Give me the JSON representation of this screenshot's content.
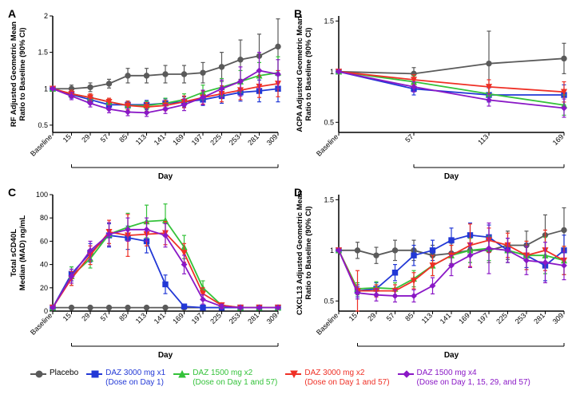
{
  "colors": {
    "placebo": "#5a5a5a",
    "daz3000x1": "#2238d6",
    "daz1500x2": "#34c23a",
    "daz3000x2": "#ef3026",
    "daz1500x4": "#8a18c6",
    "axis": "#000000",
    "bg": "#ffffff"
  },
  "markers": {
    "placebo": "circle",
    "daz3000x1": "square",
    "daz1500x2": "triangle",
    "daz3000x2": "triangle-down",
    "daz1500x4": "diamond"
  },
  "legend": [
    {
      "key": "placebo",
      "label": "Placebo",
      "sub": ""
    },
    {
      "key": "daz3000x1",
      "label": "DAZ 3000 mg x1",
      "sub": "(Dose on Day 1)"
    },
    {
      "key": "daz1500x2",
      "label": "DAZ 1500 mg x2",
      "sub": "(Dose on Day 1 and 57)"
    },
    {
      "key": "daz3000x2",
      "label": "DAZ 3000 mg x2",
      "sub": "(Dose on Day 1 and 57)"
    },
    {
      "key": "daz1500x4",
      "label": "DAZ 1500 mg x4",
      "sub": "(Dose on Day 1, 15, 29, and 57)"
    }
  ],
  "panels": {
    "A": {
      "tag": "A",
      "ylabel": "RF Adjusted Geometric Mean\nRatio to Baseline (90% CI)",
      "xlabel": "Day",
      "x_ticks": [
        "Baseline",
        "15",
        "29",
        "57",
        "85",
        "113",
        "141",
        "169",
        "197",
        "225",
        "253",
        "281",
        "309"
      ],
      "y_ticks": [
        0.5,
        1.0,
        1.5,
        2.0
      ],
      "ylim": [
        0.4,
        2.0
      ],
      "x_positions": [
        0,
        1,
        2,
        3,
        4,
        5,
        6,
        7,
        8,
        9,
        10,
        11,
        12
      ],
      "series": {
        "placebo": {
          "x": [
            0,
            1,
            2,
            3,
            4,
            5,
            6,
            7,
            8,
            9,
            10,
            11,
            12
          ],
          "y": [
            1.0,
            1.0,
            1.02,
            1.07,
            1.18,
            1.18,
            1.2,
            1.2,
            1.22,
            1.3,
            1.4,
            1.45,
            1.58
          ],
          "err": [
            0,
            0.05,
            0.06,
            0.06,
            0.1,
            0.1,
            0.12,
            0.12,
            0.14,
            0.2,
            0.27,
            0.3,
            0.38
          ]
        },
        "daz3000x1": {
          "x": [
            0,
            1,
            2,
            3,
            4,
            5,
            6,
            7,
            8,
            9,
            10,
            11,
            12
          ],
          "y": [
            1.0,
            0.92,
            0.85,
            0.78,
            0.78,
            0.78,
            0.8,
            0.82,
            0.85,
            0.9,
            0.95,
            0.97,
            1.0
          ],
          "err": [
            0,
            0.05,
            0.05,
            0.05,
            0.05,
            0.06,
            0.06,
            0.07,
            0.08,
            0.1,
            0.12,
            0.15,
            0.18
          ]
        },
        "daz1500x2": {
          "x": [
            0,
            1,
            2,
            3,
            4,
            5,
            6,
            7,
            8,
            9,
            10,
            11,
            12
          ],
          "y": [
            1.0,
            0.93,
            0.88,
            0.82,
            0.77,
            0.77,
            0.8,
            0.85,
            0.95,
            1.02,
            1.1,
            1.18,
            1.22
          ],
          "err": [
            0,
            0.05,
            0.05,
            0.05,
            0.06,
            0.06,
            0.07,
            0.08,
            0.1,
            0.12,
            0.15,
            0.18,
            0.22
          ]
        },
        "daz3000x2": {
          "x": [
            0,
            1,
            2,
            3,
            4,
            5,
            6,
            7,
            8,
            9,
            10,
            11,
            12
          ],
          "y": [
            1.0,
            0.93,
            0.88,
            0.82,
            0.77,
            0.75,
            0.77,
            0.82,
            0.88,
            0.93,
            0.98,
            1.03,
            1.07
          ],
          "err": [
            0,
            0.05,
            0.05,
            0.05,
            0.06,
            0.06,
            0.07,
            0.08,
            0.09,
            0.11,
            0.13,
            0.15,
            0.18
          ]
        },
        "daz1500x4": {
          "x": [
            0,
            1,
            2,
            3,
            4,
            5,
            6,
            7,
            8,
            9,
            10,
            11,
            12
          ],
          "y": [
            1.0,
            0.9,
            0.8,
            0.72,
            0.68,
            0.67,
            0.72,
            0.78,
            0.88,
            1.0,
            1.1,
            1.25,
            1.2
          ],
          "err": [
            0,
            0.05,
            0.05,
            0.05,
            0.05,
            0.05,
            0.06,
            0.08,
            0.1,
            0.12,
            0.2,
            0.25,
            0.2
          ]
        }
      }
    },
    "B": {
      "tag": "B",
      "ylabel": "ACPA Adjusted Geometric Mean\nRatio to Baseline (90% CI)",
      "xlabel": "Day",
      "x_ticks": [
        "Baseline",
        "57",
        "113",
        "169"
      ],
      "y_ticks": [
        0.5,
        1.0,
        1.5
      ],
      "ylim": [
        0.4,
        1.55
      ],
      "x_positions": [
        0,
        1,
        2,
        3
      ],
      "series": {
        "placebo": {
          "x": [
            0,
            1,
            2,
            3
          ],
          "y": [
            1.0,
            0.98,
            1.08,
            1.13
          ],
          "err": [
            0,
            0.06,
            0.32,
            0.15
          ]
        },
        "daz3000x1": {
          "x": [
            0,
            1,
            2,
            3
          ],
          "y": [
            1.0,
            0.83,
            0.77,
            0.77
          ],
          "err": [
            0,
            0.06,
            0.07,
            0.1
          ]
        },
        "daz1500x2": {
          "x": [
            0,
            1,
            2,
            3
          ],
          "y": [
            1.0,
            0.9,
            0.78,
            0.67
          ],
          "err": [
            0,
            0.06,
            0.07,
            0.1
          ]
        },
        "daz3000x2": {
          "x": [
            0,
            1,
            2,
            3
          ],
          "y": [
            1.0,
            0.92,
            0.85,
            0.8
          ],
          "err": [
            0,
            0.05,
            0.07,
            0.1
          ]
        },
        "daz1500x4": {
          "x": [
            0,
            1,
            2,
            3
          ],
          "y": [
            1.0,
            0.85,
            0.72,
            0.64
          ],
          "err": [
            0,
            0.05,
            0.06,
            0.09
          ]
        }
      }
    },
    "C": {
      "tag": "C",
      "ylabel": "Total sCD40L\nMedian (MAD) ng/mL",
      "xlabel": "Day",
      "x_ticks": [
        "Baseline",
        "15",
        "29",
        "57",
        "85",
        "113",
        "141",
        "169",
        "197",
        "225",
        "253",
        "281",
        "309"
      ],
      "y_ticks": [
        0,
        20,
        40,
        60,
        80,
        100
      ],
      "ylim": [
        0,
        100
      ],
      "x_positions": [
        0,
        1,
        2,
        3,
        4,
        5,
        6,
        7,
        8,
        9,
        10,
        11,
        12
      ],
      "series": {
        "placebo": {
          "x": [
            0,
            1,
            2,
            3,
            4,
            5,
            6,
            7,
            8,
            9,
            10,
            11,
            12
          ],
          "y": [
            3,
            3,
            3,
            3,
            3,
            3,
            3,
            3,
            3,
            3,
            3,
            3,
            3
          ],
          "err": [
            1,
            1,
            1,
            1,
            1,
            1,
            1,
            1,
            1,
            1,
            1,
            1,
            1
          ]
        },
        "daz3000x1": {
          "x": [
            0,
            1,
            2,
            3,
            4,
            5,
            6,
            7,
            8,
            9,
            10,
            11,
            12
          ],
          "y": [
            3,
            32,
            50,
            65,
            63,
            60,
            23,
            4,
            3,
            3,
            3,
            3,
            3
          ],
          "err": [
            1,
            6,
            8,
            10,
            10,
            10,
            8,
            2,
            1,
            1,
            1,
            1,
            1
          ]
        },
        "daz1500x2": {
          "x": [
            0,
            1,
            2,
            3,
            4,
            5,
            6,
            7,
            8,
            9,
            10,
            11,
            12
          ],
          "y": [
            3,
            30,
            45,
            66,
            72,
            77,
            78,
            55,
            20,
            5,
            3,
            3,
            3
          ],
          "err": [
            1,
            8,
            8,
            10,
            12,
            14,
            14,
            10,
            6,
            2,
            1,
            1,
            1
          ]
        },
        "daz3000x2": {
          "x": [
            0,
            1,
            2,
            3,
            4,
            5,
            6,
            7,
            8,
            9,
            10,
            11,
            12
          ],
          "y": [
            3,
            28,
            48,
            68,
            65,
            66,
            67,
            50,
            15,
            5,
            3,
            3,
            3
          ],
          "err": [
            1,
            6,
            8,
            10,
            18,
            10,
            10,
            8,
            5,
            2,
            1,
            1,
            1
          ]
        },
        "daz1500x4": {
          "x": [
            0,
            1,
            2,
            3,
            4,
            5,
            6,
            7,
            8,
            9,
            10,
            11,
            12
          ],
          "y": [
            3,
            30,
            52,
            66,
            70,
            70,
            65,
            40,
            10,
            4,
            3,
            3,
            3
          ],
          "err": [
            1,
            6,
            8,
            10,
            10,
            10,
            10,
            8,
            4,
            2,
            1,
            1,
            1
          ]
        }
      }
    },
    "D": {
      "tag": "D",
      "ylabel": "CXCL13 Adjusted Geometric Mean\nRatio to Baseline (90% CI)",
      "xlabel": "Day",
      "x_ticks": [
        "Baseline",
        "15",
        "29",
        "57",
        "85",
        "113",
        "141",
        "169",
        "197",
        "225",
        "253",
        "281",
        "309"
      ],
      "y_ticks": [
        0.5,
        1.0,
        1.5
      ],
      "ylim": [
        0.4,
        1.55
      ],
      "x_positions": [
        0,
        1,
        2,
        3,
        4,
        5,
        6,
        7,
        8,
        9,
        10,
        11,
        12
      ],
      "series": {
        "placebo": {
          "x": [
            0,
            1,
            2,
            3,
            4,
            5,
            6,
            7,
            8,
            9,
            10,
            11,
            12
          ],
          "y": [
            1.0,
            1.0,
            0.95,
            1.0,
            1.0,
            0.95,
            0.97,
            1.0,
            1.0,
            1.05,
            1.05,
            1.15,
            1.2
          ],
          "err": [
            0,
            0.08,
            0.08,
            0.1,
            0.1,
            0.1,
            0.1,
            0.12,
            0.12,
            0.14,
            0.14,
            0.2,
            0.22
          ]
        },
        "daz3000x1": {
          "x": [
            0,
            1,
            2,
            3,
            4,
            5,
            6,
            7,
            8,
            9,
            10,
            11,
            12
          ],
          "y": [
            1.0,
            0.6,
            0.62,
            0.78,
            0.95,
            1.0,
            1.1,
            1.15,
            1.13,
            1.0,
            0.95,
            0.85,
            1.0
          ],
          "err": [
            0,
            0.06,
            0.06,
            0.08,
            0.1,
            0.1,
            0.12,
            0.12,
            0.12,
            0.12,
            0.12,
            0.15,
            0.15
          ]
        },
        "daz1500x2": {
          "x": [
            0,
            1,
            2,
            3,
            4,
            5,
            6,
            7,
            8,
            9,
            10,
            11,
            12
          ],
          "y": [
            1.0,
            0.62,
            0.63,
            0.62,
            0.72,
            0.85,
            0.95,
            1.0,
            1.02,
            1.0,
            0.95,
            0.95,
            0.9
          ],
          "err": [
            0,
            0.06,
            0.06,
            0.06,
            0.08,
            0.1,
            0.1,
            0.12,
            0.12,
            0.12,
            0.14,
            0.18,
            0.14
          ]
        },
        "daz3000x2": {
          "x": [
            0,
            1,
            2,
            3,
            4,
            5,
            6,
            7,
            8,
            9,
            10,
            11,
            12
          ],
          "y": [
            1.0,
            0.6,
            0.6,
            0.6,
            0.7,
            0.85,
            0.95,
            1.05,
            1.1,
            1.05,
            0.95,
            1.0,
            0.9
          ],
          "err": [
            0,
            0.2,
            0.06,
            0.06,
            0.08,
            0.1,
            0.1,
            0.21,
            0.12,
            0.12,
            0.14,
            0.2,
            0.14
          ]
        },
        "daz1500x4": {
          "x": [
            0,
            1,
            2,
            3,
            4,
            5,
            6,
            7,
            8,
            9,
            10,
            11,
            12
          ],
          "y": [
            1.0,
            0.58,
            0.56,
            0.55,
            0.55,
            0.65,
            0.85,
            0.95,
            1.02,
            1.0,
            0.9,
            0.88,
            0.85
          ],
          "err": [
            0,
            0.06,
            0.06,
            0.06,
            0.06,
            0.08,
            0.1,
            0.12,
            0.25,
            0.12,
            0.14,
            0.2,
            0.14
          ]
        }
      }
    }
  }
}
